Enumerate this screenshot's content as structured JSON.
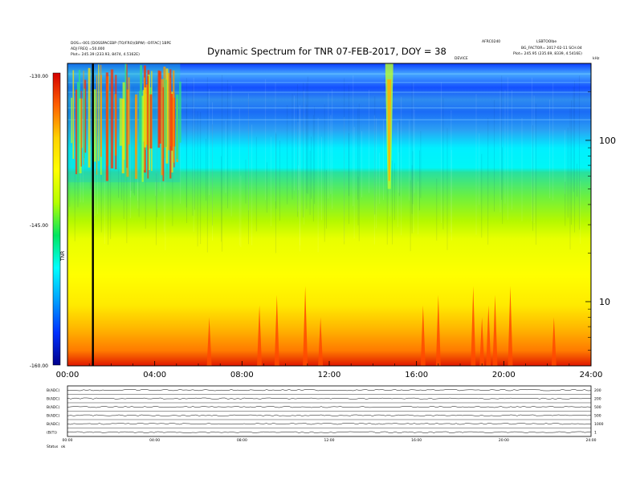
{
  "header": {
    "left_line1": "DOS=-001 [DOSSPACEBP (TO/FRO)(BPW) -OFFAC] 1BPE",
    "left_line2": "ADJ FREQ =50.000",
    "left_line3": "Plot= 245.39 (233.93, 8474, 4.5162E)",
    "title": "Dynamic Spectrum for TNR 07-FEB-2017, DOY = 38",
    "right_line1a": "AFRC0240",
    "right_line1b": "LSBTOOlbe",
    "right_line2": "BG_FACTOR= 2017-02-11 SCH.04",
    "right_line3": "Plot= 245.95 (235.69, 8339, 4.5416E)",
    "over_label": "DEVICE",
    "corner_label": "kHz"
  },
  "colorbar": {
    "ticks": [
      "-130.00",
      "-145.00",
      "-160.00"
    ],
    "unit_label": "TNR",
    "colors": [
      "#d40000",
      "#ff6000",
      "#ffd200",
      "#ffff00",
      "#b4ff00",
      "#00e660",
      "#00ffff",
      "#00a0ff",
      "#0030ff",
      "#00008c"
    ]
  },
  "chart_data": {
    "type": "heatmap",
    "title": "Dynamic Spectrum for TNR 07-FEB-2017, DOY = 38",
    "x": {
      "ticks": [
        "00:00",
        "04:00",
        "08:00",
        "12:00",
        "16:00",
        "20:00",
        "24:00"
      ],
      "range_hours": [
        0,
        24
      ]
    },
    "y": {
      "scale": "log",
      "unit": "kHz",
      "range": [
        4,
        300
      ],
      "ticks": [
        10,
        100
      ],
      "tick_labels": [
        "10",
        "100"
      ]
    },
    "z": {
      "unit": "TNR",
      "range": [
        -160.0,
        -130.0
      ],
      "ticks": [
        -130.0,
        -145.0,
        -160.0
      ]
    },
    "bands": [
      {
        "freq_range_khz": [
          250,
          300
        ],
        "level": "deep blue"
      },
      {
        "freq_range_khz": [
          190,
          250
        ],
        "level": "blue"
      },
      {
        "freq_range_khz": [
          115,
          190
        ],
        "level": "blue"
      },
      {
        "freq_range_khz": [
          55,
          115
        ],
        "level": "cyan"
      },
      {
        "freq_range_khz": [
          20,
          55
        ],
        "level": "green"
      },
      {
        "freq_range_khz": [
          6.5,
          20
        ],
        "level": "yellow"
      },
      {
        "freq_range_khz": [
          4,
          6.5
        ],
        "level": "orange-red"
      }
    ],
    "features": [
      {
        "type": "data gap",
        "time": "01:10"
      },
      {
        "type": "broadband burst",
        "time_range": [
          "00:00",
          "05:10"
        ],
        "freq_range_khz": [
          55,
          300
        ]
      },
      {
        "type": "burst",
        "time": "14:45",
        "freq_range_khz": [
          50,
          300
        ]
      }
    ],
    "low_freq_spikes_hours": [
      6.5,
      8.8,
      9.6,
      10.9,
      11.6,
      16.3,
      17.0,
      18.6,
      19.0,
      19.3,
      19.6,
      20.3,
      22.3
    ]
  },
  "bottom_panel": {
    "rows": [
      {
        "label": "B(ADC)",
        "right": "200"
      },
      {
        "label": "B(ADC)",
        "right": "200"
      },
      {
        "label": "B(ADC)",
        "right": "500"
      },
      {
        "label": "B(ADC)",
        "right": "500"
      },
      {
        "label": "B(ADC)",
        "right": "1000"
      },
      {
        "label": "(B(T))",
        "right": "1"
      }
    ],
    "x_ticks": [
      "00:00",
      "04:00",
      "08:00",
      "12:00",
      "16:00",
      "20:00",
      "24:00"
    ],
    "status_label": "Status",
    "status_value": "ok"
  }
}
